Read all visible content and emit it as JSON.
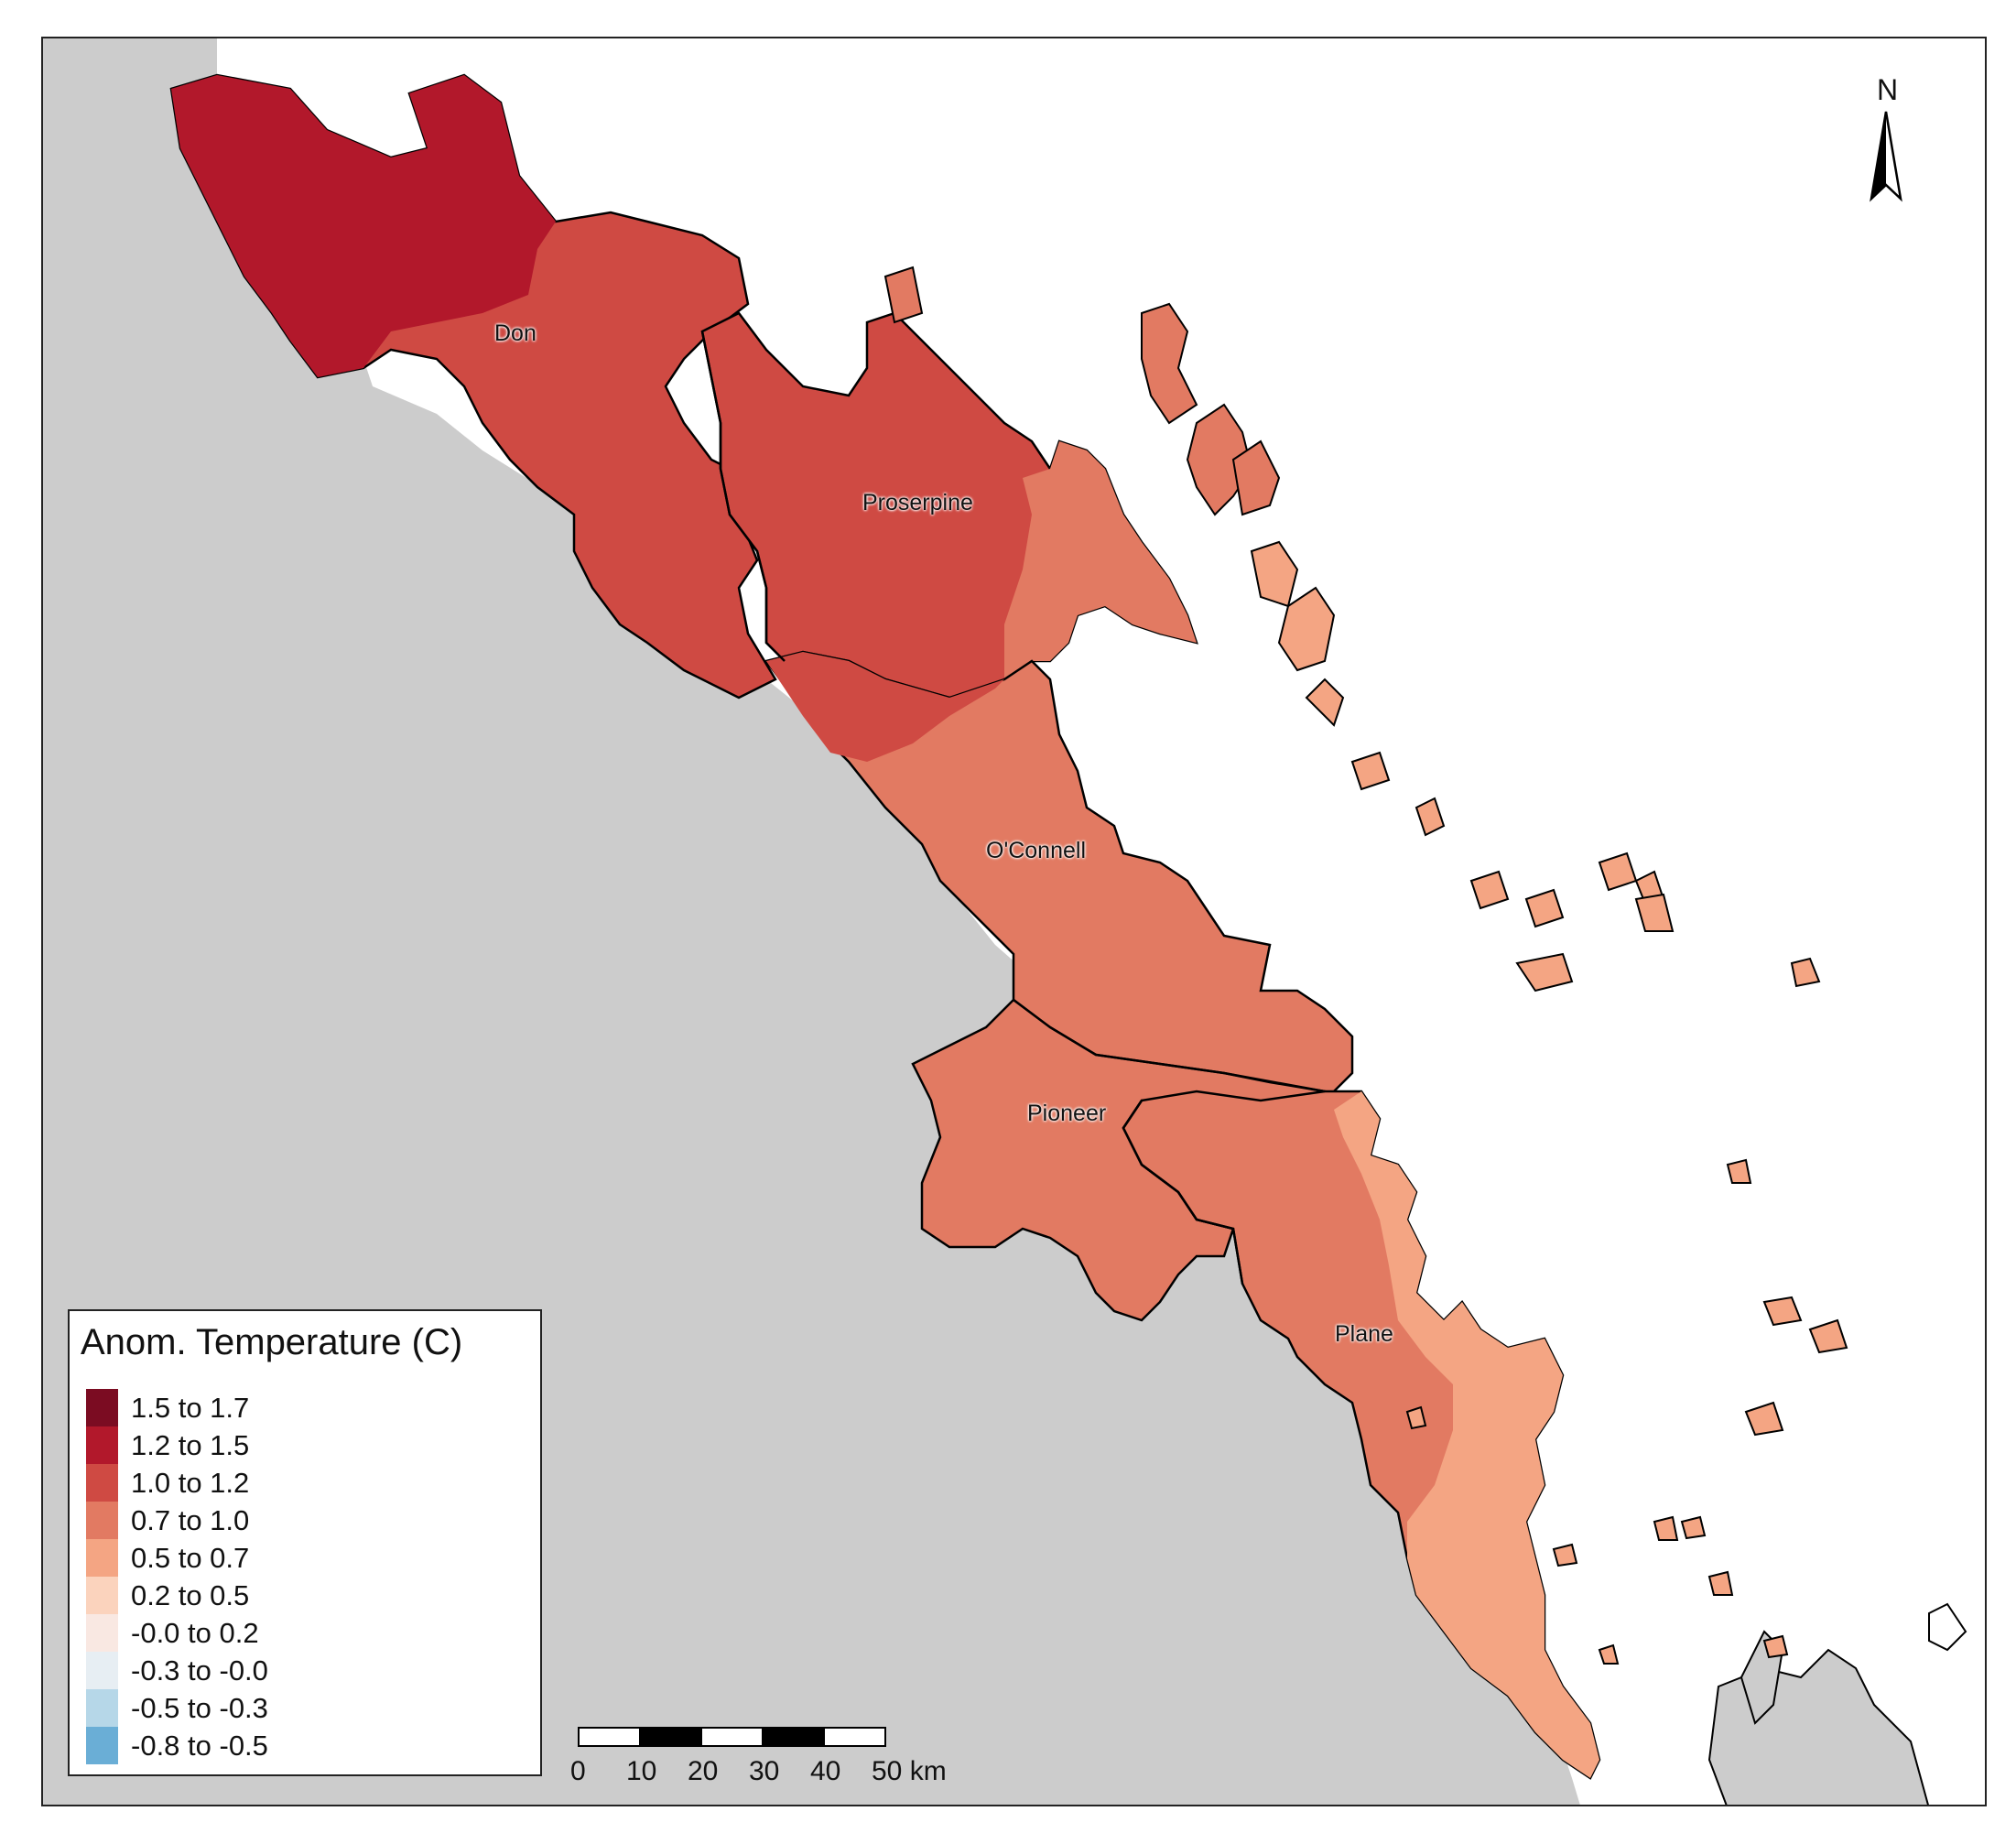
{
  "legend": {
    "title": "Anom. Temperature (C)",
    "items": [
      {
        "label": "1.5 to 1.7",
        "color": "#7b0c22"
      },
      {
        "label": "1.2 to 1.5",
        "color": "#b2182b"
      },
      {
        "label": "1.0 to 1.2",
        "color": "#cf4a43"
      },
      {
        "label": "0.7 to 1.0",
        "color": "#e27a62"
      },
      {
        "label": "0.5 to 0.7",
        "color": "#f4a583"
      },
      {
        "label": "0.2 to 0.5",
        "color": "#fbd3bd"
      },
      {
        "label": "-0.0 to 0.2",
        "color": "#f9e8e2"
      },
      {
        "label": "-0.3 to -0.0",
        "color": "#e7eef3"
      },
      {
        "label": "-0.5 to -0.3",
        "color": "#b6d7e8"
      },
      {
        "label": "-0.8 to -0.5",
        "color": "#6aaed6"
      }
    ]
  },
  "basins": [
    {
      "name": "Don"
    },
    {
      "name": "Proserpine"
    },
    {
      "name": "O'Connell"
    },
    {
      "name": "Pioneer"
    },
    {
      "name": "Plane"
    }
  ],
  "north_arrow": {
    "letter": "N"
  },
  "scale_bar": {
    "ticks": [
      "0",
      "10",
      "20",
      "30",
      "40",
      "50 km"
    ]
  },
  "colors": {
    "land_background": "#cccccc",
    "sea": "#ffffff",
    "boundary": "#000000"
  }
}
